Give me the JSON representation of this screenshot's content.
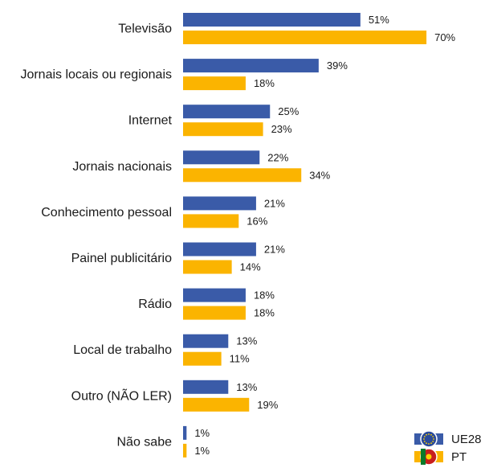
{
  "chart_data": {
    "type": "bar",
    "orientation": "horizontal",
    "categories": [
      "Televisão",
      "Jornais locais ou regionais",
      "Internet",
      "Jornais nacionais",
      "Conhecimento pessoal",
      "Painel publicitário",
      "Rádio",
      "Local de trabalho",
      "Outro (NÃO LER)",
      "Não sabe"
    ],
    "series": [
      {
        "name": "UE28",
        "color": "#3a5ba8",
        "values": [
          51,
          39,
          25,
          22,
          21,
          21,
          18,
          13,
          13,
          1
        ]
      },
      {
        "name": "PT",
        "color": "#fbb400",
        "values": [
          70,
          18,
          23,
          34,
          16,
          14,
          18,
          11,
          19,
          1
        ]
      }
    ],
    "value_suffix": "%",
    "xlim": [
      0,
      80
    ],
    "grid": false,
    "legend_position": "bottom-right",
    "legend_icons": [
      "eu-flag-icon",
      "portugal-flag-icon"
    ]
  }
}
